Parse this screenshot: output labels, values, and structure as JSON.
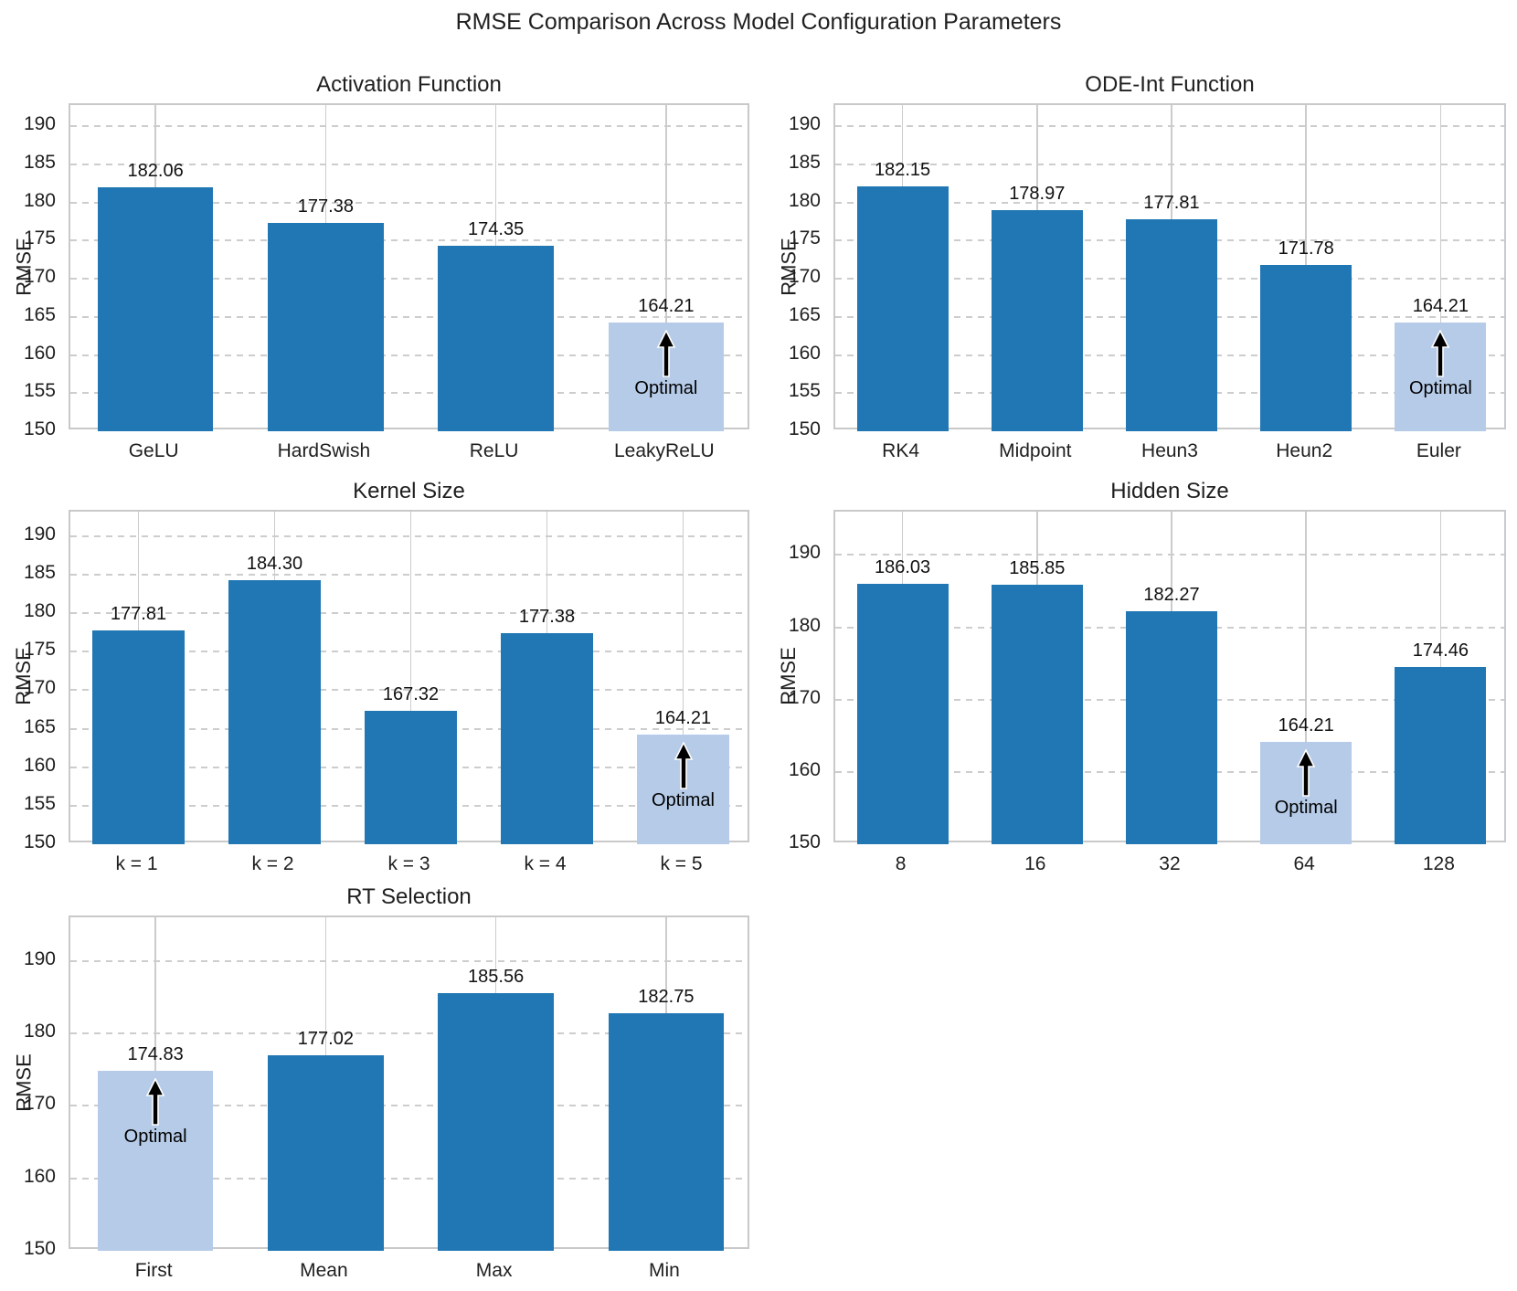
{
  "figure": {
    "title": "RMSE Comparison Across Model Configuration Parameters"
  },
  "colors": {
    "bar": "#2077b4",
    "bar_optimal": "#b5cbe8",
    "grid": "#cccccc",
    "spine": "#c9c9c9",
    "text": "#1f1f1f"
  },
  "chart_data": [
    {
      "type": "bar",
      "title": "Activation Function",
      "xlabel": "",
      "ylabel": "RMSE",
      "ylim": [
        150,
        192.8
      ],
      "yticks": [
        150,
        155,
        160,
        165,
        170,
        175,
        180,
        185,
        190
      ],
      "grid": true,
      "categories": [
        "GeLU",
        "HardSwish",
        "ReLU",
        "LeakyReLU"
      ],
      "values": [
        182.06,
        177.38,
        174.35,
        164.21
      ],
      "optimal_index": 3,
      "annotation": "Optimal"
    },
    {
      "type": "bar",
      "title": "ODE-Int Function",
      "xlabel": "",
      "ylabel": "RMSE",
      "ylim": [
        150,
        192.8
      ],
      "yticks": [
        150,
        155,
        160,
        165,
        170,
        175,
        180,
        185,
        190
      ],
      "grid": true,
      "categories": [
        "RK4",
        "Midpoint",
        "Heun3",
        "Heun2",
        "Euler"
      ],
      "values": [
        182.15,
        178.97,
        177.81,
        171.78,
        164.21
      ],
      "optimal_index": 4,
      "annotation": "Optimal"
    },
    {
      "type": "bar",
      "title": "Kernel Size",
      "xlabel": "",
      "ylabel": "RMSE",
      "ylim": [
        150,
        193.2
      ],
      "yticks": [
        150,
        155,
        160,
        165,
        170,
        175,
        180,
        185,
        190
      ],
      "grid": true,
      "categories": [
        "k = 1",
        "k = 2",
        "k = 3",
        "k = 4",
        "k = 5"
      ],
      "values": [
        177.81,
        184.3,
        167.32,
        177.38,
        164.21
      ],
      "optimal_index": 4,
      "annotation": "Optimal"
    },
    {
      "type": "bar",
      "title": "Hidden Size",
      "xlabel": "",
      "ylabel": "RMSE",
      "ylim": [
        150,
        196
      ],
      "yticks": [
        150,
        160,
        170,
        180,
        190
      ],
      "grid": true,
      "categories": [
        "8",
        "16",
        "32",
        "64",
        "128"
      ],
      "values": [
        186.03,
        185.85,
        182.27,
        164.21,
        174.46
      ],
      "optimal_index": 3,
      "annotation": "Optimal"
    },
    {
      "type": "bar",
      "title": "RT Selection",
      "xlabel": "",
      "ylabel": "RMSE",
      "ylim": [
        150,
        196
      ],
      "yticks": [
        150,
        160,
        170,
        180,
        190
      ],
      "grid": true,
      "categories": [
        "First",
        "Mean",
        "Max",
        "Min"
      ],
      "values": [
        174.83,
        177.02,
        185.56,
        182.75
      ],
      "optimal_index": 0,
      "annotation": "Optimal"
    }
  ]
}
